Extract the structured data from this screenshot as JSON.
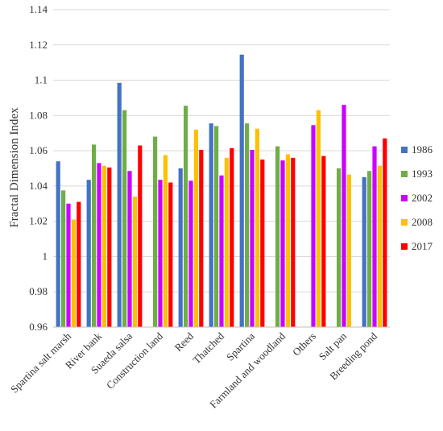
{
  "chart_data": {
    "type": "bar",
    "ylabel": "Fractal Dimension Index",
    "xlabel": "",
    "ylim": [
      0.96,
      1.14
    ],
    "yticks": [
      "0.96",
      "0.98",
      "1",
      "1.02",
      "1.04",
      "1.06",
      "1.08",
      "1.1",
      "1.12",
      "1.14"
    ],
    "grid": true,
    "legend_position": "right",
    "categories": [
      "Spartina salt marsh",
      "River bank",
      "Suaeda salsa",
      "Construction land",
      "Reed",
      "Thatched",
      "Spartina",
      "Farmland and woodland",
      "Others",
      "Salt pan",
      "Breeding pond"
    ],
    "series": [
      {
        "name": "1986",
        "color": "#4472C4",
        "values": [
          1.054,
          1.0435,
          1.0985,
          null,
          1.05,
          1.0755,
          1.1145,
          null,
          null,
          null,
          1.045
        ]
      },
      {
        "name": "1993",
        "color": "#70AD47",
        "values": [
          1.0375,
          1.0635,
          1.083,
          1.068,
          1.0855,
          1.074,
          1.0755,
          1.0625,
          null,
          1.05,
          1.0485
        ]
      },
      {
        "name": "2002",
        "color": "#CC00FF",
        "values": [
          1.03,
          1.053,
          1.0485,
          1.0435,
          1.043,
          1.046,
          1.0605,
          1.0545,
          1.0745,
          1.086,
          1.0625
        ]
      },
      {
        "name": "2008",
        "color": "#FFC000",
        "values": [
          1.021,
          1.0515,
          1.034,
          1.0575,
          1.072,
          1.056,
          1.0725,
          1.058,
          1.083,
          1.0465,
          1.0515
        ]
      },
      {
        "name": "2017",
        "color": "#FF0000",
        "values": [
          1.031,
          1.0505,
          1.063,
          1.042,
          1.0605,
          1.0615,
          1.055,
          1.056,
          1.057,
          null,
          1.067
        ]
      }
    ]
  }
}
